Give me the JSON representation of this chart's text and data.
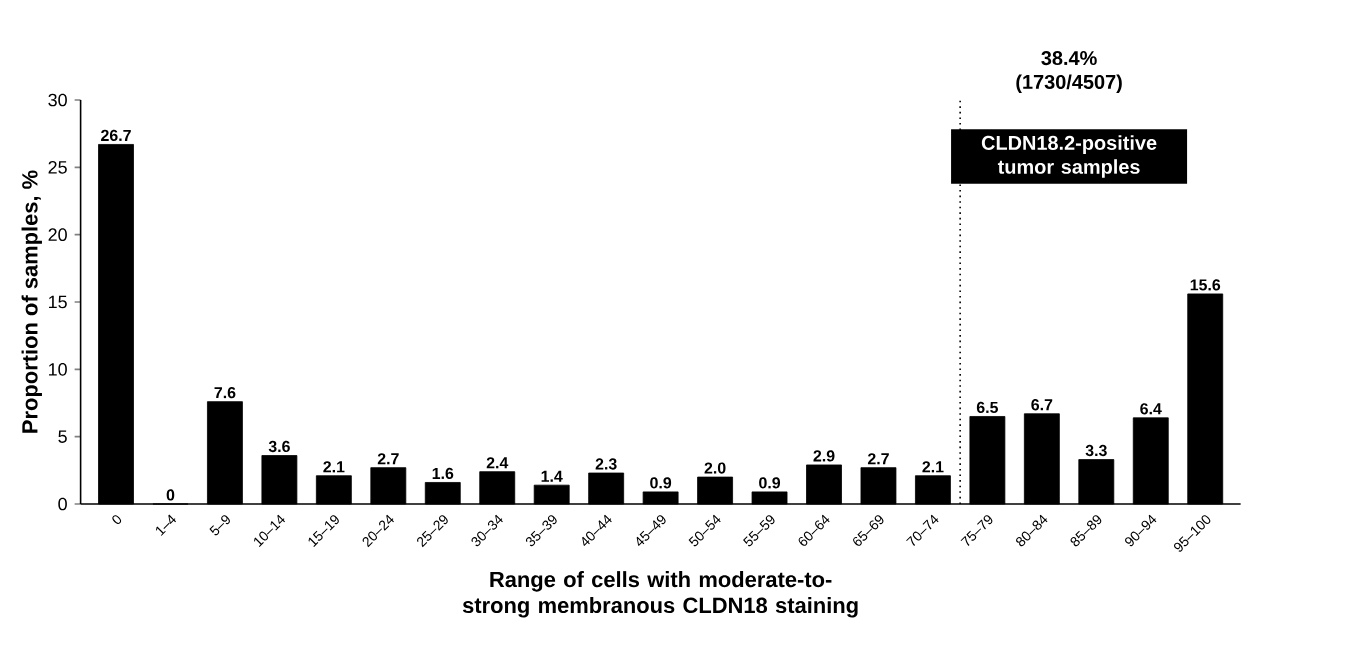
{
  "chart_data": {
    "type": "bar",
    "categories": [
      "0",
      "1–4",
      "5–9",
      "10–14",
      "15–19",
      "20–24",
      "25–29",
      "30–34",
      "35–39",
      "40–44",
      "45–49",
      "50–54",
      "55–59",
      "60–64",
      "65–69",
      "70–74",
      "75–79",
      "80–84",
      "85–89",
      "90–94",
      "95–100"
    ],
    "values": [
      26.7,
      0,
      7.6,
      3.6,
      2.1,
      2.7,
      1.6,
      2.4,
      1.4,
      2.3,
      0.9,
      2.0,
      0.9,
      2.9,
      2.7,
      2.1,
      6.5,
      6.7,
      3.3,
      6.4,
      15.6
    ],
    "color": "#000000",
    "xlabel": "Range of cells with moderate-to-strong membranous CLDN18 staining",
    "ylabel": "Proportion of samples, %",
    "ylim": [
      0,
      30
    ],
    "yticks": [
      0,
      5,
      10,
      15,
      20,
      25,
      30
    ],
    "value_labels": [
      "26.7",
      "0",
      "7.6",
      "3.6",
      "2.1",
      "2.7",
      "1.6",
      "2.4",
      "1.4",
      "2.3",
      "0.9",
      "2.0",
      "0.9",
      "2.9",
      "2.7",
      "2.1",
      "6.5",
      "6.7",
      "3.3",
      "6.4",
      "15.6"
    ],
    "annotations": [
      "38.4% (1730/4507)",
      "CLDN18.2-positive tumor samples"
    ]
  }
}
